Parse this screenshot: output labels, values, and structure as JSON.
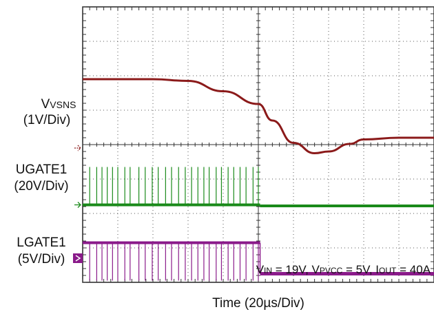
{
  "chart_data": {
    "type": "line",
    "xlabel": "Time (20µs/Div)",
    "divisions": {
      "x": 10,
      "y": 8
    },
    "conditions": {
      "vin": {
        "sym": "V",
        "sub": "IN",
        "val": " = 19V, "
      },
      "vpvcc": {
        "sym": "V",
        "sub": "PVCC",
        "val": " = 5V, "
      },
      "iout": {
        "sym": "I",
        "sub": "OUT",
        "val": " = 40A"
      }
    },
    "channels": [
      {
        "id": "vsns",
        "label_main": "V",
        "label_sub": "VSNS",
        "scale": "(1V/Div)",
        "color": "#8b1a1a",
        "ref_marker": "open",
        "x_div": [
          0,
          1,
          2,
          3,
          4,
          5,
          5.4,
          6,
          6.6,
          7,
          7.6,
          8,
          9,
          10
        ],
        "y_div": [
          5.9,
          5.9,
          5.9,
          5.85,
          5.55,
          5.18,
          4.7,
          4.05,
          3.75,
          3.8,
          4.02,
          4.15,
          4.2,
          4.2
        ]
      },
      {
        "id": "ugate1",
        "label_main": "UGATE1",
        "label_sub": "",
        "scale": "(20V/Div)",
        "color": "#1a8a1a",
        "ref_marker": "open",
        "baseline_div": 2.25,
        "pulse_peak_div": 3.35,
        "pulse_x_div": [
          0.2,
          0.4,
          0.55,
          0.7,
          0.85,
          1.0,
          1.2,
          1.35,
          1.6,
          1.78,
          1.98,
          2.15,
          2.36,
          2.53,
          2.73,
          2.92,
          3.1,
          3.28,
          3.45,
          3.6,
          3.8,
          3.95,
          4.14,
          4.3,
          4.48,
          4.65,
          4.85,
          5.0
        ],
        "off_after_div": 5.05,
        "off_level_div": 2.22
      },
      {
        "id": "lgate1",
        "label_main": "LGATE1",
        "label_sub": "",
        "scale": "(5V/Div)",
        "color": "#8a1a8a",
        "ref_marker": "filled",
        "high_div": 1.15,
        "low_div": 0.05,
        "dip_x_div": [
          0.2,
          0.4,
          0.55,
          0.7,
          0.85,
          1.0,
          1.2,
          1.35,
          1.6,
          1.78,
          1.98,
          2.15,
          2.36,
          2.53,
          2.73,
          2.92,
          3.1,
          3.28,
          3.45,
          3.6,
          3.8,
          3.95,
          4.14,
          4.3,
          4.48,
          4.65,
          4.85,
          5.0
        ],
        "off_after_div": 5.05,
        "off_level_div": 0.25
      }
    ]
  }
}
